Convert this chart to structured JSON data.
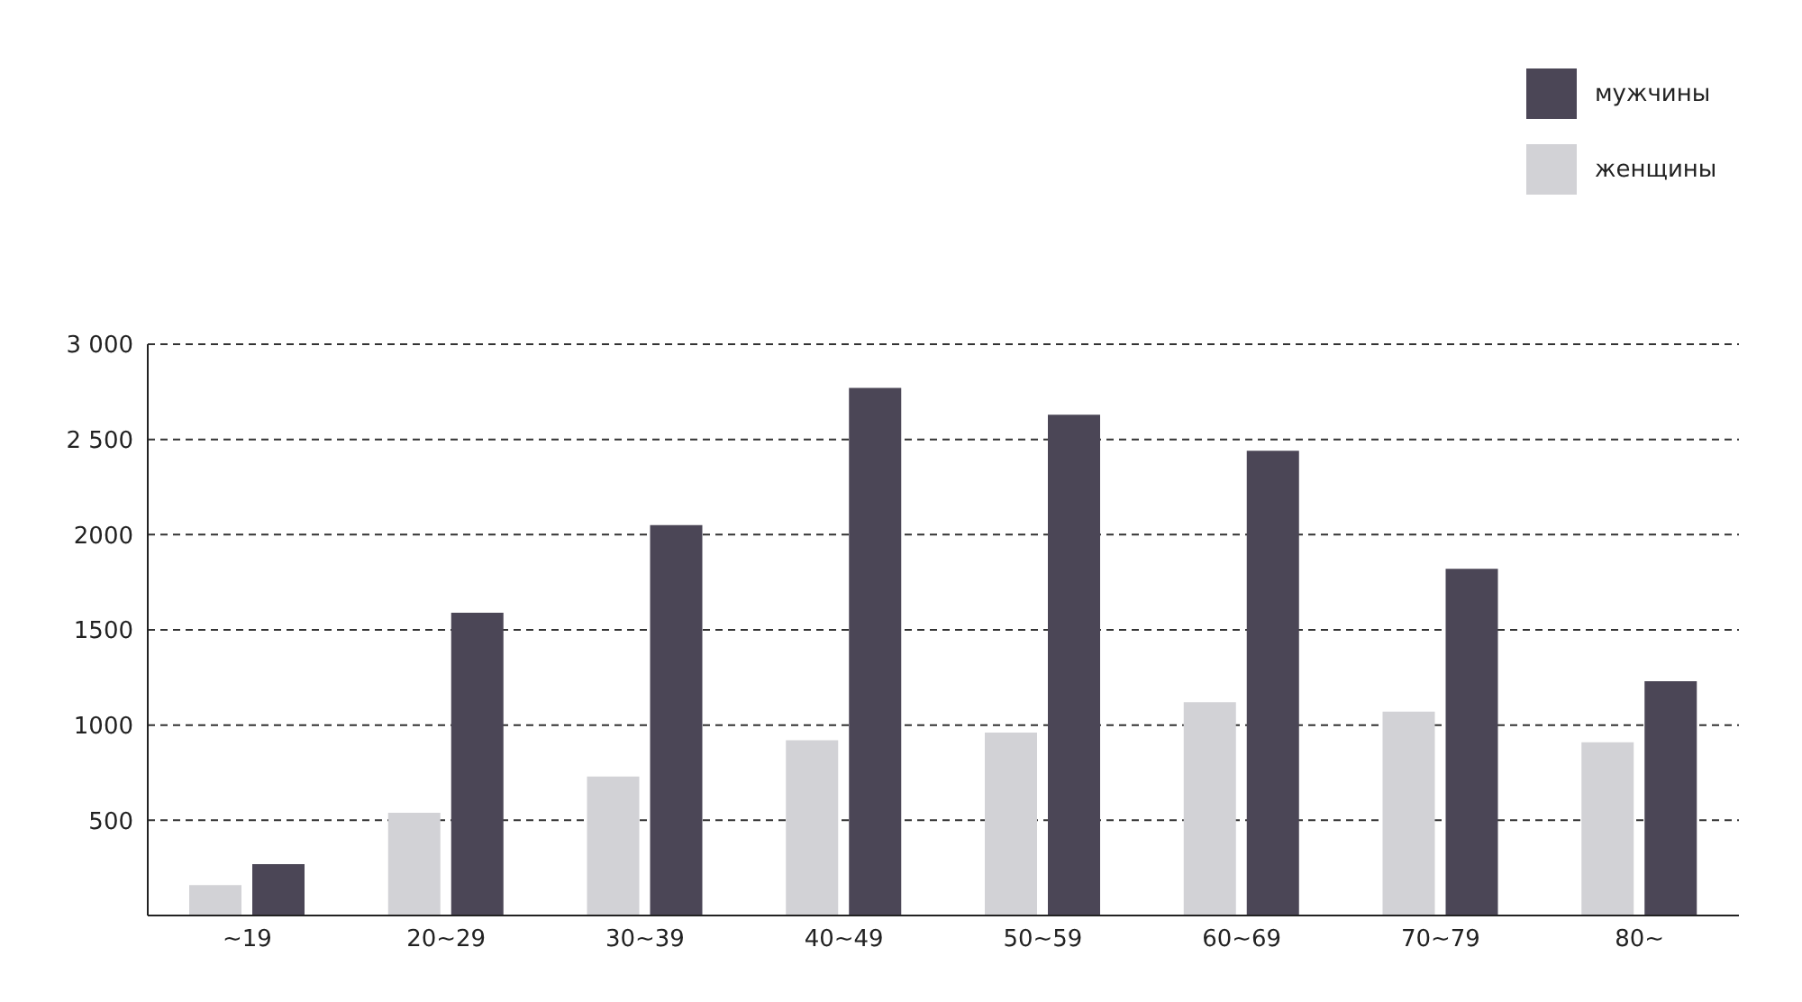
{
  "chart_data": {
    "type": "bar",
    "categories": [
      "~19",
      "20~29",
      "30~39",
      "40~49",
      "50~59",
      "60~69",
      "70~79",
      "80~"
    ],
    "series": [
      {
        "name": "женщины",
        "color": "#d2d2d6",
        "values": [
          160,
          540,
          730,
          920,
          960,
          1120,
          1070,
          910
        ]
      },
      {
        "name": "мужчины",
        "color": "#4b4656",
        "values": [
          270,
          1590,
          2050,
          2770,
          2630,
          2440,
          1820,
          1230
        ]
      }
    ],
    "ylim": [
      0,
      3000
    ],
    "yticks": [
      500,
      1000,
      1500,
      2000,
      {
        "value": 2500,
        "label": "2 500"
      },
      {
        "value": 3000,
        "label": "3 000"
      }
    ],
    "grid": "y",
    "legend": "top right"
  }
}
